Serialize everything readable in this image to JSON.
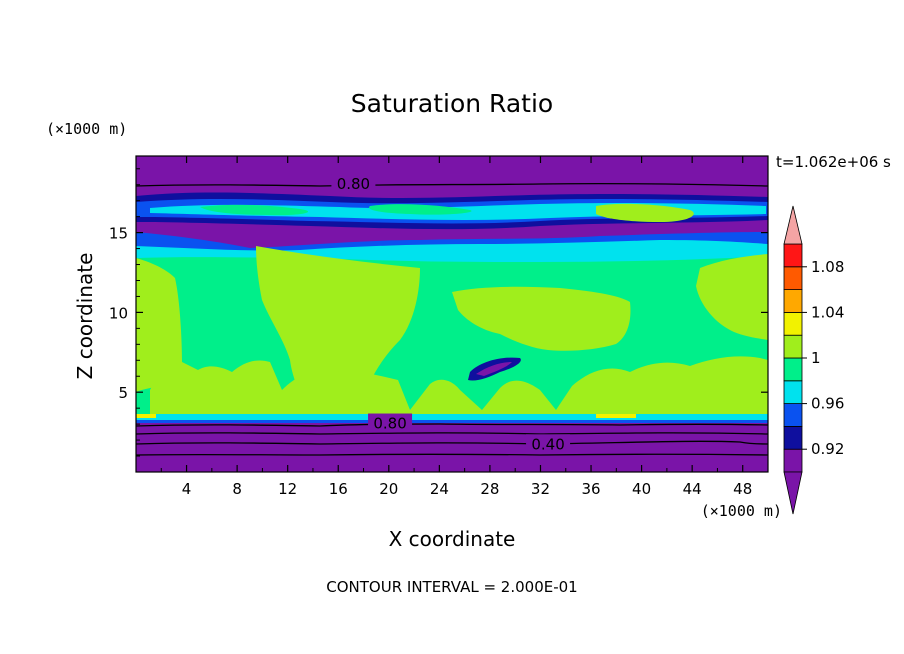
{
  "chart_data": {
    "type": "heatmap",
    "title": "Saturation Ratio",
    "xlabel": "X coordinate",
    "ylabel": "Z coordinate",
    "x_unit": "(×1000 m)",
    "y_unit": "(×1000 m)",
    "time_label": "t=1.062e+06 s",
    "footer": "CONTOUR INTERVAL = 2.000E-01",
    "xlim": [
      0,
      50
    ],
    "ylim": [
      0,
      19.8
    ],
    "x_ticks": [
      4,
      8,
      12,
      16,
      20,
      24,
      28,
      32,
      36,
      40,
      44,
      48
    ],
    "y_ticks": [
      5,
      10,
      15
    ],
    "colorbar": {
      "levels": [
        0.9,
        0.92,
        0.94,
        0.96,
        0.98,
        1.0,
        1.02,
        1.04,
        1.06,
        1.08,
        1.1
      ],
      "labels": [
        "0.92",
        "0.96",
        "1",
        "1.04",
        "1.08"
      ],
      "label_values": [
        0.92,
        0.96,
        1.0,
        1.04,
        1.08
      ],
      "under_color": "#7a14a8",
      "over_color": "#f4a4a4",
      "colors": [
        "#7a14a8",
        "#0f0f9e",
        "#0a52f0",
        "#00e2ee",
        "#00ef8a",
        "#a0ee1c",
        "#f2f200",
        "#ffa800",
        "#ff5a00",
        "#ff1616"
      ]
    },
    "contour_labels": [
      {
        "text": "0.80",
        "x": 17.2,
        "z": 18.1
      },
      {
        "text": "0.80",
        "x": 20.1,
        "z": 3.1
      },
      {
        "text": "0.40",
        "x": 32.6,
        "z": 1.8
      }
    ]
  }
}
